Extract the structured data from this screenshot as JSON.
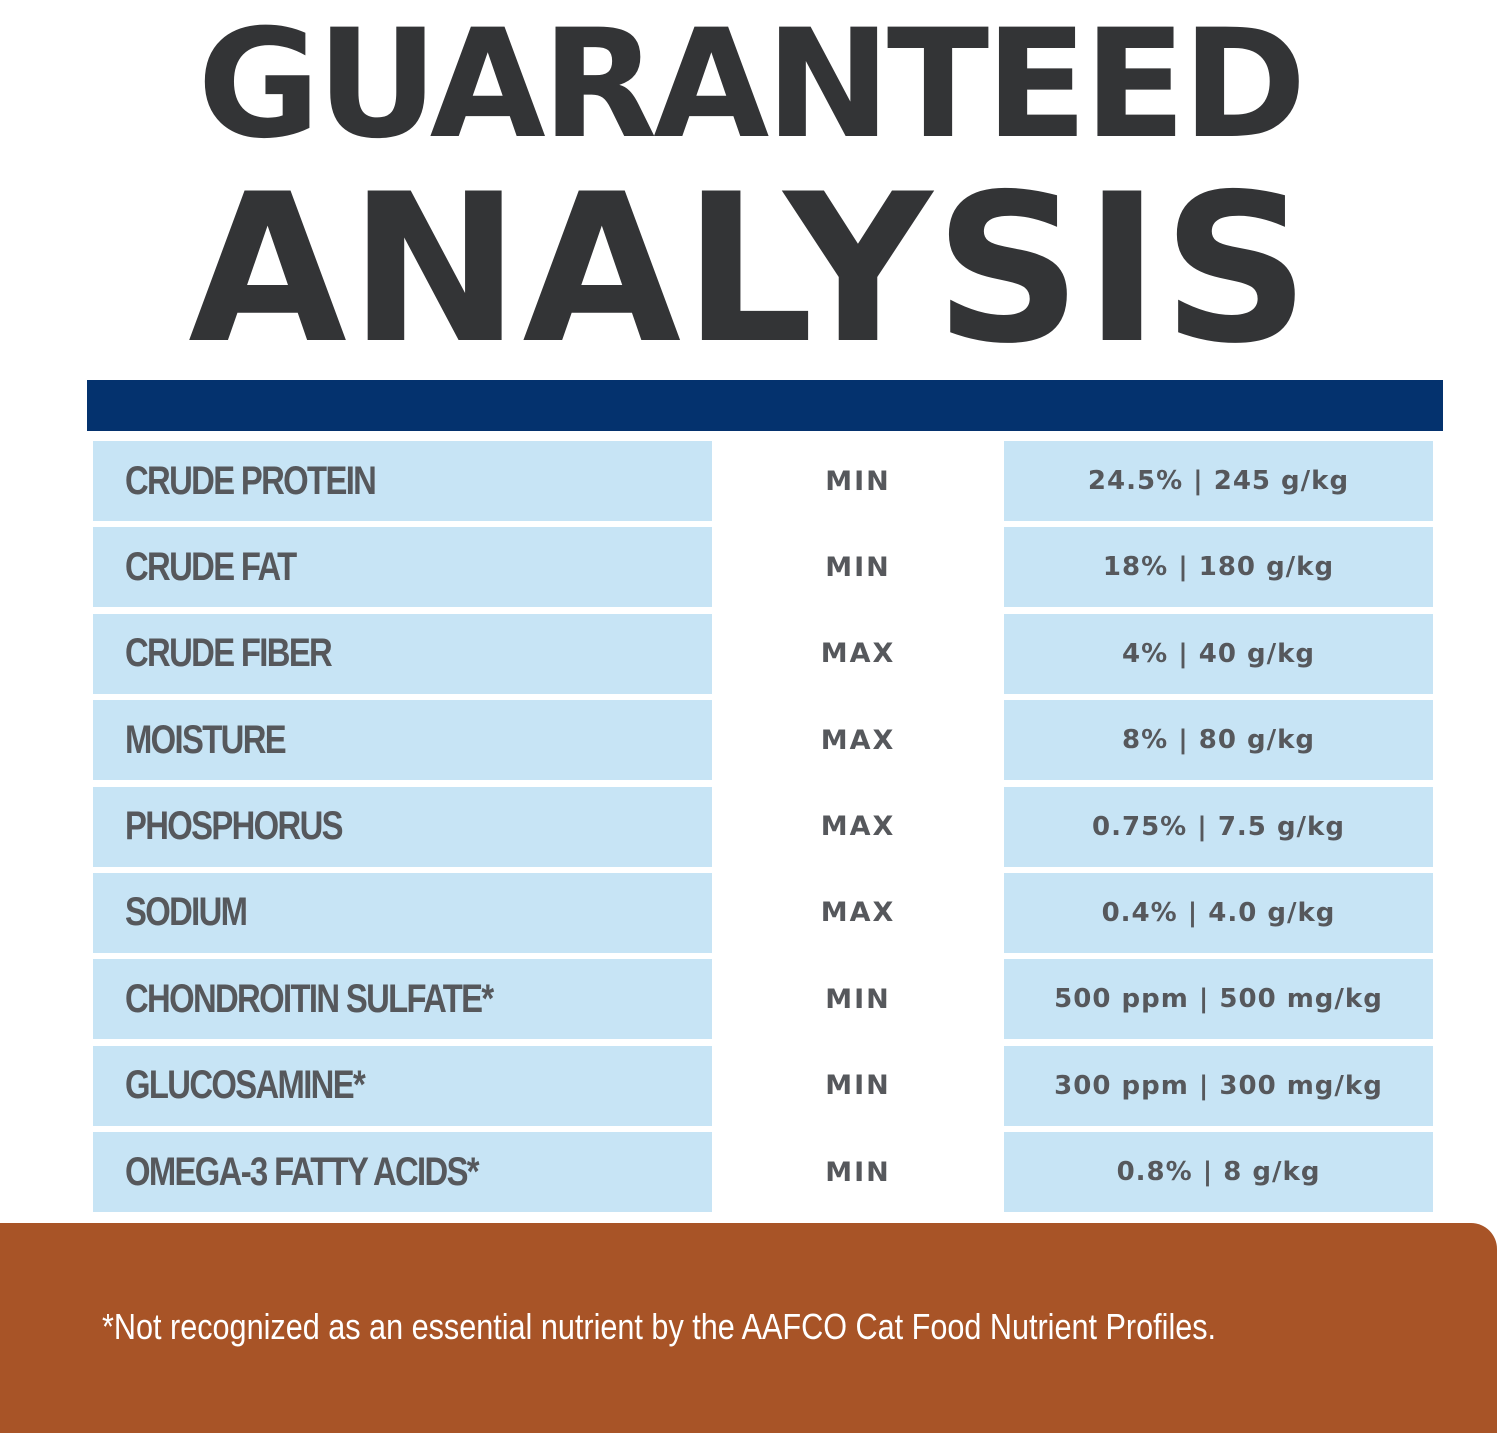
{
  "title": {
    "line1": "GUARANTEED",
    "line2": "ANALYSIS"
  },
  "colors": {
    "title_text": "#333436",
    "blue_bar": "#04326e",
    "cell_background": "#c7e4f5",
    "cell_text": "#56585c",
    "footer_background": "#a85427",
    "footer_text": "#ffffff"
  },
  "rows": [
    {
      "nutrient": "CRUDE PROTEIN",
      "qualifier": "MIN",
      "value": "24.5% | 245 g/kg"
    },
    {
      "nutrient": "CRUDE FAT",
      "qualifier": "MIN",
      "value": "18% | 180 g/kg"
    },
    {
      "nutrient": "CRUDE FIBER",
      "qualifier": "MAX",
      "value": "4% | 40 g/kg"
    },
    {
      "nutrient": "MOISTURE",
      "qualifier": "MAX",
      "value": "8% | 80 g/kg"
    },
    {
      "nutrient": "PHOSPHORUS",
      "qualifier": "MAX",
      "value": "0.75% | 7.5 g/kg"
    },
    {
      "nutrient": "SODIUM",
      "qualifier": "MAX",
      "value": "0.4% | 4.0 g/kg"
    },
    {
      "nutrient": "CHONDROITIN SULFATE*",
      "qualifier": "MIN",
      "value": "500 ppm | 500 mg/kg"
    },
    {
      "nutrient": "GLUCOSAMINE*",
      "qualifier": "MIN",
      "value": "300 ppm | 300 mg/kg"
    },
    {
      "nutrient": "OMEGA-3 FATTY ACIDS*",
      "qualifier": "MIN",
      "value": "0.8% | 8 g/kg"
    }
  ],
  "footnote": "*Not recognized as an essential nutrient by the AAFCO Cat Food Nutrient Profiles."
}
